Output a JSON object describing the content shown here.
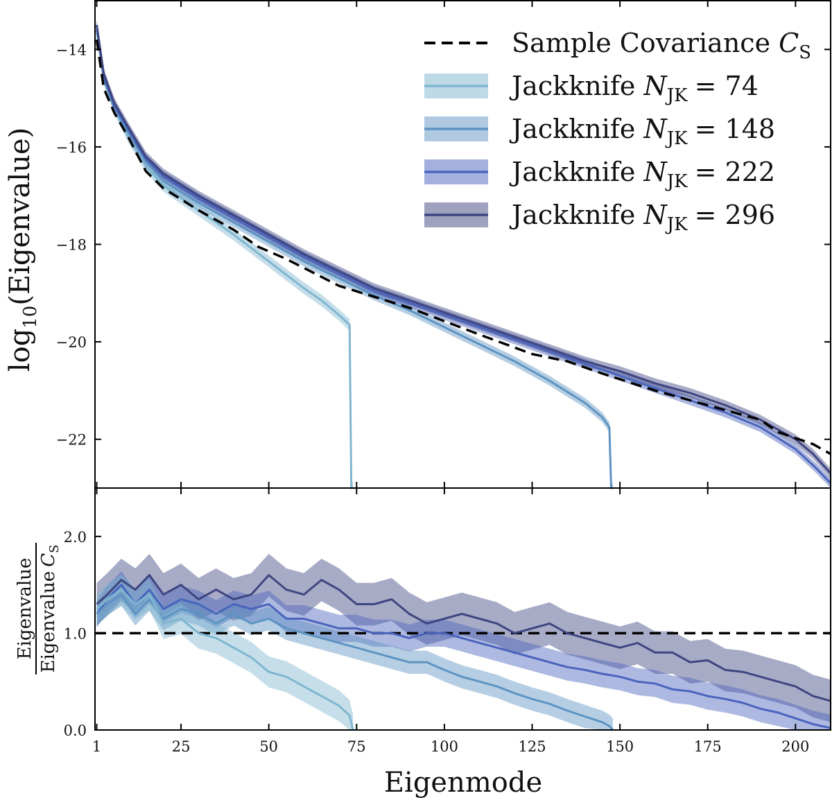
{
  "chart_data": [
    {
      "type": "line",
      "panel": "top",
      "ylabel": "log10(Eigenvalue)",
      "ylim": [
        -23,
        -13
      ],
      "xlim": [
        0.5,
        210
      ],
      "yticks": [
        -14,
        -16,
        -18,
        -20,
        -22
      ],
      "ytick_labels": [
        "−14",
        "−16",
        "−18",
        "−20",
        "−22"
      ],
      "legend_position": "top-right",
      "legend": [
        {
          "label": "Sample Covariance",
          "math": "C",
          "sub": "S",
          "style": "dashed",
          "color": "#000000"
        },
        {
          "label": "Jackknife",
          "math": "N",
          "sub": "JK",
          "eq": "= 74",
          "color": "#7fb6d0"
        },
        {
          "label": "Jackknife",
          "math": "N",
          "sub": "JK",
          "eq": "= 148",
          "color": "#5d93c2"
        },
        {
          "label": "Jackknife",
          "math": "N",
          "sub": "JK",
          "eq": "= 222",
          "color": "#4a64bd"
        },
        {
          "label": "Jackknife",
          "math": "N",
          "sub": "JK",
          "eq": "= 296",
          "color": "#3e4580"
        }
      ],
      "series": [
        {
          "name": "Sample Covariance C_S",
          "style": "dashed",
          "color": "#000000",
          "x": [
            1,
            3,
            6,
            10,
            15,
            20,
            30,
            40,
            47,
            55,
            70,
            90,
            110,
            125,
            135,
            145,
            160,
            175,
            190,
            195,
            205,
            210
          ],
          "y": [
            -13.8,
            -14.8,
            -15.3,
            -15.8,
            -16.5,
            -16.85,
            -17.3,
            -17.7,
            -18.05,
            -18.3,
            -18.85,
            -19.3,
            -19.85,
            -20.25,
            -20.4,
            -20.65,
            -21.0,
            -21.3,
            -21.6,
            -21.85,
            -22.1,
            -22.3
          ]
        },
        {
          "name": "Jackknife N_JK = 74",
          "color": "#7fb6d0",
          "band": 0.12,
          "x": [
            1,
            3,
            6,
            10,
            15,
            20,
            30,
            40,
            50,
            60,
            65,
            70,
            73,
            73.5,
            74
          ],
          "y": [
            -13.6,
            -14.6,
            -15.2,
            -15.8,
            -16.4,
            -16.8,
            -17.3,
            -17.8,
            -18.35,
            -18.9,
            -19.15,
            -19.45,
            -19.65,
            -23,
            -23
          ]
        },
        {
          "name": "Jackknife N_JK = 148",
          "color": "#5d93c2",
          "band": 0.1,
          "x": [
            1,
            3,
            6,
            10,
            15,
            20,
            30,
            40,
            50,
            60,
            70,
            80,
            90,
            100,
            110,
            120,
            130,
            140,
            145,
            147,
            147.5,
            148
          ],
          "y": [
            -13.6,
            -14.6,
            -15.2,
            -15.7,
            -16.3,
            -16.7,
            -17.15,
            -17.55,
            -17.95,
            -18.35,
            -18.7,
            -19.05,
            -19.35,
            -19.7,
            -20.05,
            -20.4,
            -20.8,
            -21.25,
            -21.55,
            -21.75,
            -23,
            -23
          ]
        },
        {
          "name": "Jackknife N_JK = 222",
          "color": "#4a64bd",
          "band": 0.1,
          "x": [
            1,
            3,
            6,
            10,
            15,
            20,
            30,
            40,
            50,
            60,
            70,
            80,
            90,
            100,
            110,
            120,
            130,
            140,
            150,
            160,
            170,
            180,
            190,
            200,
            206,
            210
          ],
          "y": [
            -13.5,
            -14.55,
            -15.15,
            -15.65,
            -16.25,
            -16.6,
            -17.05,
            -17.45,
            -17.85,
            -18.25,
            -18.6,
            -18.95,
            -19.2,
            -19.45,
            -19.7,
            -19.95,
            -20.2,
            -20.45,
            -20.7,
            -20.95,
            -21.2,
            -21.45,
            -21.75,
            -22.2,
            -22.6,
            -22.9
          ]
        },
        {
          "name": "Jackknife N_JK = 296",
          "color": "#3e4580",
          "band": 0.1,
          "x": [
            1,
            3,
            6,
            10,
            15,
            20,
            30,
            40,
            50,
            60,
            70,
            80,
            90,
            100,
            110,
            120,
            130,
            140,
            150,
            160,
            170,
            180,
            190,
            200,
            205,
            210
          ],
          "y": [
            -13.5,
            -14.5,
            -15.1,
            -15.6,
            -16.2,
            -16.55,
            -17.0,
            -17.4,
            -17.8,
            -18.2,
            -18.55,
            -18.9,
            -19.15,
            -19.4,
            -19.65,
            -19.9,
            -20.15,
            -20.4,
            -20.6,
            -20.85,
            -21.05,
            -21.3,
            -21.6,
            -22.0,
            -22.3,
            -22.7
          ]
        }
      ]
    },
    {
      "type": "line",
      "panel": "bottom",
      "ylabel": "Eigenvalue / Eigenvalue C_S",
      "ylabel_num": "Eigenvalue",
      "ylabel_den": "Eigenvalue",
      "ylabel_den_math": "C",
      "ylabel_den_sub": "S",
      "xlabel": "Eigenmode",
      "ylim": [
        0,
        2.5
      ],
      "xlim": [
        0.5,
        210
      ],
      "xticks": [
        1,
        25,
        50,
        75,
        100,
        125,
        150,
        175,
        200
      ],
      "xtick_labels": [
        "1",
        "25",
        "50",
        "75",
        "100",
        "125",
        "150",
        "175",
        "200"
      ],
      "yticks": [
        0.0,
        1.0,
        2.0
      ],
      "ytick_labels": [
        "0.0",
        "1.0",
        "2.0"
      ],
      "reference_line": {
        "y": 1.0,
        "style": "dashed",
        "color": "#000000"
      },
      "series": [
        {
          "name": "Jackknife N_JK = 296",
          "color": "#3e4580",
          "x": [
            1,
            4,
            8,
            12,
            16,
            20,
            25,
            30,
            35,
            40,
            45,
            50,
            55,
            60,
            65,
            70,
            75,
            80,
            85,
            90,
            95,
            100,
            105,
            110,
            115,
            120,
            125,
            130,
            135,
            140,
            145,
            150,
            155,
            160,
            165,
            170,
            175,
            180,
            185,
            190,
            195,
            200,
            205,
            210
          ],
          "y": [
            1.3,
            1.4,
            1.55,
            1.45,
            1.6,
            1.4,
            1.5,
            1.35,
            1.45,
            1.35,
            1.4,
            1.6,
            1.45,
            1.4,
            1.55,
            1.45,
            1.3,
            1.3,
            1.35,
            1.2,
            1.1,
            1.15,
            1.2,
            1.15,
            1.1,
            1.0,
            1.05,
            1.1,
            1.0,
            0.95,
            0.9,
            0.85,
            0.9,
            0.8,
            0.8,
            0.7,
            0.72,
            0.62,
            0.6,
            0.55,
            0.5,
            0.45,
            0.35,
            0.3
          ],
          "band": 0.22
        },
        {
          "name": "Jackknife N_JK = 222",
          "color": "#4a64bd",
          "x": [
            1,
            4,
            8,
            12,
            16,
            20,
            25,
            30,
            35,
            40,
            45,
            50,
            55,
            60,
            65,
            70,
            75,
            80,
            85,
            90,
            95,
            100,
            105,
            110,
            115,
            120,
            125,
            130,
            135,
            140,
            145,
            150,
            155,
            160,
            165,
            170,
            175,
            180,
            185,
            190,
            195,
            200,
            205,
            210
          ],
          "y": [
            1.2,
            1.35,
            1.5,
            1.3,
            1.45,
            1.25,
            1.35,
            1.3,
            1.2,
            1.3,
            1.25,
            1.3,
            1.15,
            1.15,
            1.1,
            1.05,
            1.05,
            1.0,
            1.0,
            0.95,
            1.0,
            1.0,
            0.95,
            0.9,
            0.85,
            0.8,
            0.75,
            0.7,
            0.65,
            0.62,
            0.58,
            0.55,
            0.5,
            0.48,
            0.42,
            0.4,
            0.35,
            0.32,
            0.28,
            0.22,
            0.18,
            0.12,
            0.06,
            0.02
          ],
          "band": 0.14
        },
        {
          "name": "Jackknife N_JK = 148",
          "color": "#5d93c2",
          "x": [
            1,
            4,
            8,
            12,
            16,
            20,
            25,
            30,
            35,
            40,
            45,
            50,
            55,
            60,
            65,
            70,
            75,
            80,
            85,
            90,
            95,
            100,
            105,
            110,
            115,
            120,
            125,
            130,
            135,
            140,
            145,
            147,
            148
          ],
          "y": [
            1.2,
            1.3,
            1.4,
            1.2,
            1.35,
            1.15,
            1.25,
            1.2,
            1.1,
            1.2,
            1.1,
            1.15,
            1.05,
            1.0,
            0.95,
            0.9,
            0.85,
            0.8,
            0.75,
            0.7,
            0.7,
            0.62,
            0.55,
            0.5,
            0.45,
            0.38,
            0.32,
            0.27,
            0.2,
            0.14,
            0.08,
            0.04,
            0.0
          ],
          "band": 0.12
        },
        {
          "name": "Jackknife N_JK = 74",
          "color": "#7fb6d0",
          "x": [
            1,
            4,
            8,
            12,
            16,
            20,
            25,
            30,
            35,
            40,
            45,
            50,
            55,
            60,
            65,
            70,
            73,
            74
          ],
          "y": [
            1.25,
            1.35,
            1.45,
            1.3,
            1.4,
            1.1,
            1.15,
            1.0,
            0.95,
            0.85,
            0.75,
            0.6,
            0.55,
            0.45,
            0.35,
            0.25,
            0.15,
            0.0
          ],
          "band": 0.16
        }
      ]
    }
  ]
}
